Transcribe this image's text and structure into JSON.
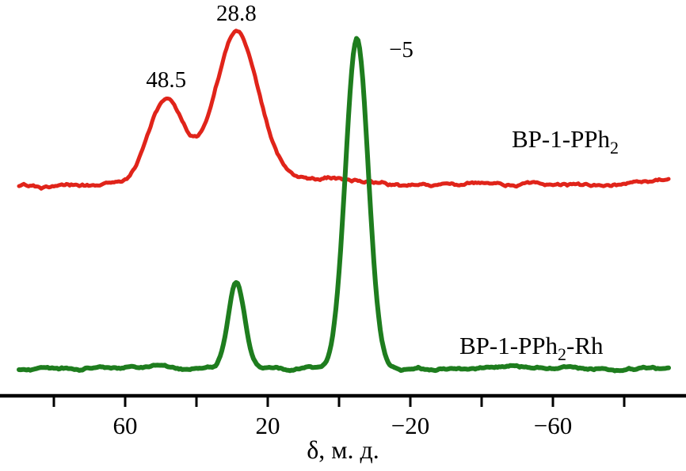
{
  "figure": {
    "description": "NMR spectra comparison, two stacked traces",
    "background_color": "#ffffff",
    "axis_color": "#000000"
  },
  "chart_data": {
    "type": "line",
    "title": "",
    "xlabel": "δ, м. д.",
    "ylabel": "",
    "x_axis": {
      "label": "δ, м. д.",
      "inverted": true,
      "range_ppm": [
        95,
        -97
      ],
      "major_ticks": [
        60,
        20,
        -20,
        -60
      ],
      "major_tick_labels": [
        "60",
        "20",
        "−20",
        "−60"
      ],
      "minor_ticks": [
        80,
        40,
        0,
        -40,
        -80
      ]
    },
    "series": [
      {
        "name": "BP-1-PPh2",
        "label_parts": [
          {
            "text": "BP-1-PPh"
          },
          {
            "text": "2",
            "sub": true
          }
        ],
        "color": "#e0241a",
        "peaks": [
          {
            "ppm": 48.5,
            "intensity": 0.25,
            "sigma_ppm": 5.0,
            "label": "48.5",
            "label_side": "top"
          },
          {
            "ppm": 28.8,
            "intensity": 0.45,
            "sigma_ppm": 6.2,
            "label": "28.8",
            "label_side": "top"
          }
        ]
      },
      {
        "name": "BP-1-PPh2-Rh",
        "label_parts": [
          {
            "text": "BP-1-PPh"
          },
          {
            "text": "2",
            "sub": true
          },
          {
            "text": "-Rh"
          }
        ],
        "color": "#1e7d1e",
        "peaks": [
          {
            "ppm": 28.8,
            "intensity": 0.26,
            "sigma_ppm": 2.3
          },
          {
            "ppm": -5,
            "intensity": 1.0,
            "sigma_ppm": 3.2,
            "label": "−5",
            "label_side": "right"
          }
        ]
      }
    ]
  }
}
